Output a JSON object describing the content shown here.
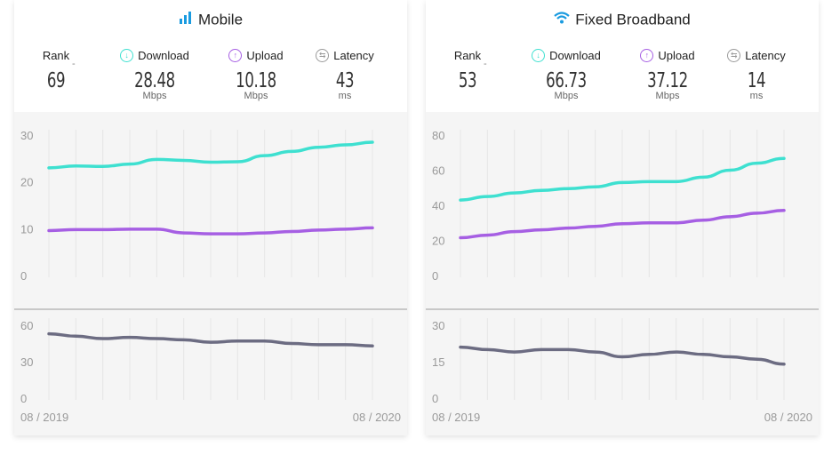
{
  "panels": [
    {
      "title": "Mobile",
      "icon": "signal-bars-icon",
      "rank_label": "Rank",
      "rank_value": "69",
      "rank_change": "-",
      "download_label": "Download",
      "download_value": "28.48",
      "download_unit": "Mbps",
      "upload_label": "Upload",
      "upload_value": "10.18",
      "upload_unit": "Mbps",
      "latency_label": "Latency",
      "latency_value": "43",
      "latency_unit": "ms",
      "date_start": "08 / 2019",
      "date_end": "08 / 2020"
    },
    {
      "title": "Fixed Broadband",
      "icon": "wifi-icon",
      "rank_label": "Rank",
      "rank_value": "53",
      "rank_change": "-",
      "download_label": "Download",
      "download_value": "66.73",
      "download_unit": "Mbps",
      "upload_label": "Upload",
      "upload_value": "37.12",
      "upload_unit": "Mbps",
      "latency_label": "Latency",
      "latency_value": "14",
      "latency_unit": "ms",
      "date_start": "08 / 2019",
      "date_end": "08 / 2020"
    }
  ],
  "colors": {
    "download": "#3ee0d0",
    "upload": "#a65fe3",
    "latency": "#6c6c82",
    "accent": "#1a9be0"
  },
  "chart_data": [
    {
      "type": "line",
      "x": [
        "08/2019",
        "09/2019",
        "10/2019",
        "11/2019",
        "12/2019",
        "01/2020",
        "02/2020",
        "03/2020",
        "04/2020",
        "05/2020",
        "06/2020",
        "07/2020",
        "08/2020"
      ],
      "ylim": [
        0,
        30
      ],
      "yticks": [
        "0",
        "10",
        "20",
        "30"
      ],
      "series": [
        {
          "key": "download",
          "values": [
            23.0,
            23.4,
            23.3,
            23.8,
            24.8,
            24.6,
            24.2,
            24.3,
            25.6,
            26.5,
            27.4,
            27.9,
            28.48
          ]
        },
        {
          "key": "upload",
          "values": [
            9.6,
            9.8,
            9.8,
            9.9,
            9.9,
            9.1,
            8.9,
            8.9,
            9.1,
            9.4,
            9.7,
            9.9,
            10.18
          ]
        }
      ],
      "latency": {
        "ylim": [
          0,
          60
        ],
        "yticks": [
          "0",
          "30",
          "60"
        ],
        "values": [
          53,
          51,
          49,
          50,
          49,
          48,
          46,
          47,
          47,
          45,
          44,
          44,
          43
        ]
      }
    },
    {
      "type": "line",
      "x": [
        "08/2019",
        "09/2019",
        "10/2019",
        "11/2019",
        "12/2019",
        "01/2020",
        "02/2020",
        "03/2020",
        "04/2020",
        "05/2020",
        "06/2020",
        "07/2020",
        "08/2020"
      ],
      "ylim": [
        0,
        80
      ],
      "yticks": [
        "0",
        "20",
        "40",
        "60",
        "80"
      ],
      "series": [
        {
          "key": "download",
          "values": [
            43,
            45,
            47,
            48.5,
            49.5,
            50.5,
            53,
            53.5,
            53.5,
            56,
            60,
            64,
            66.73
          ]
        },
        {
          "key": "upload",
          "values": [
            21.5,
            23,
            25,
            26,
            27,
            28,
            29.5,
            30,
            30,
            31.5,
            33.5,
            35.5,
            37.12
          ]
        }
      ],
      "latency": {
        "ylim": [
          0,
          30
        ],
        "yticks": [
          "0",
          "15",
          "30"
        ],
        "values": [
          21,
          20,
          19,
          20,
          20,
          19,
          17,
          18,
          19,
          18,
          17,
          16,
          14
        ]
      }
    }
  ]
}
